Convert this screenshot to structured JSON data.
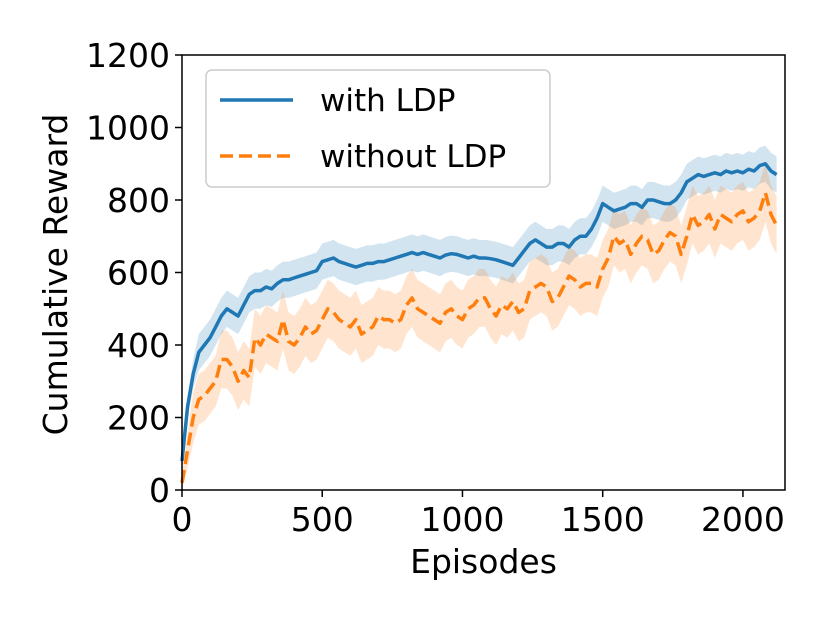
{
  "chart_data": {
    "type": "line",
    "title": "",
    "xlabel": "Episodes",
    "ylabel": "Cumulative Reward",
    "xlim": [
      0,
      2150
    ],
    "ylim": [
      0,
      1200
    ],
    "xticks": [
      0,
      500,
      1000,
      1500,
      2000
    ],
    "yticks": [
      0,
      200,
      400,
      600,
      800,
      1000,
      1200
    ],
    "grid": false,
    "legend_position": "top-left",
    "x": [
      0,
      20,
      40,
      60,
      80,
      100,
      120,
      140,
      160,
      180,
      200,
      220,
      240,
      260,
      280,
      300,
      320,
      340,
      360,
      380,
      400,
      420,
      440,
      460,
      480,
      500,
      520,
      540,
      560,
      580,
      600,
      620,
      640,
      660,
      680,
      700,
      720,
      740,
      760,
      780,
      800,
      820,
      840,
      860,
      880,
      900,
      920,
      940,
      960,
      980,
      1000,
      1020,
      1040,
      1060,
      1080,
      1100,
      1120,
      1140,
      1160,
      1180,
      1200,
      1220,
      1240,
      1260,
      1280,
      1300,
      1320,
      1340,
      1360,
      1380,
      1400,
      1420,
      1440,
      1460,
      1480,
      1500,
      1520,
      1540,
      1560,
      1580,
      1600,
      1620,
      1640,
      1660,
      1680,
      1700,
      1720,
      1740,
      1760,
      1780,
      1800,
      1820,
      1840,
      1860,
      1880,
      1900,
      1920,
      1940,
      1960,
      1980,
      2000,
      2020,
      2040,
      2060,
      2080,
      2100,
      2120
    ],
    "series": [
      {
        "name": "with LDP",
        "color": "#1f77b4",
        "style": "solid",
        "values": [
          80,
          230,
          320,
          380,
          400,
          420,
          450,
          480,
          500,
          490,
          480,
          510,
          540,
          550,
          550,
          560,
          555,
          570,
          580,
          580,
          585,
          590,
          595,
          600,
          605,
          630,
          635,
          640,
          630,
          625,
          620,
          615,
          620,
          625,
          625,
          630,
          630,
          635,
          640,
          645,
          650,
          655,
          650,
          655,
          650,
          645,
          640,
          648,
          652,
          650,
          645,
          640,
          645,
          640,
          640,
          638,
          635,
          630,
          625,
          620,
          640,
          660,
          680,
          690,
          680,
          670,
          670,
          680,
          680,
          670,
          690,
          700,
          700,
          720,
          750,
          790,
          780,
          770,
          775,
          780,
          790,
          790,
          780,
          800,
          800,
          795,
          790,
          790,
          800,
          820,
          850,
          860,
          870,
          865,
          870,
          875,
          870,
          880,
          875,
          880,
          875,
          885,
          880,
          895,
          900,
          880,
          870
        ]
      },
      {
        "name": "without LDP",
        "color": "#ff7f0e",
        "style": "dashed",
        "values": [
          20,
          110,
          200,
          250,
          260,
          280,
          300,
          360,
          360,
          340,
          300,
          330,
          310,
          420,
          400,
          430,
          420,
          410,
          470,
          410,
          400,
          420,
          450,
          430,
          440,
          470,
          500,
          490,
          470,
          460,
          450,
          470,
          430,
          440,
          450,
          480,
          470,
          470,
          460,
          470,
          510,
          530,
          500,
          490,
          480,
          470,
          460,
          490,
          500,
          480,
          470,
          500,
          510,
          530,
          530,
          500,
          480,
          510,
          500,
          520,
          490,
          500,
          550,
          560,
          570,
          560,
          520,
          530,
          560,
          590,
          580,
          560,
          570,
          570,
          560,
          610,
          640,
          700,
          680,
          690,
          650,
          680,
          700,
          690,
          650,
          660,
          690,
          710,
          700,
          650,
          700,
          760,
          730,
          740,
          760,
          720,
          760,
          750,
          740,
          760,
          770,
          740,
          750,
          770,
          820,
          760,
          730
        ]
      }
    ],
    "confidence_band": {
      "with LDP": {
        "lower": [
          50,
          200,
          280,
          330,
          350,
          370,
          400,
          430,
          450,
          440,
          430,
          460,
          490,
          500,
          500,
          510,
          505,
          520,
          530,
          530,
          535,
          540,
          545,
          550,
          555,
          580,
          585,
          590,
          580,
          575,
          570,
          565,
          570,
          575,
          575,
          580,
          580,
          585,
          590,
          595,
          600,
          605,
          600,
          605,
          600,
          595,
          590,
          598,
          602,
          600,
          595,
          590,
          595,
          590,
          590,
          588,
          585,
          580,
          575,
          570,
          590,
          610,
          630,
          640,
          630,
          620,
          620,
          630,
          630,
          620,
          640,
          650,
          650,
          670,
          700,
          740,
          730,
          720,
          725,
          730,
          740,
          740,
          730,
          750,
          750,
          745,
          740,
          740,
          750,
          770,
          800,
          810,
          820,
          815,
          820,
          825,
          820,
          830,
          825,
          830,
          825,
          835,
          830,
          845,
          850,
          830,
          820
        ],
        "upper": [
          110,
          260,
          360,
          430,
          450,
          470,
          500,
          530,
          550,
          540,
          530,
          560,
          590,
          600,
          600,
          610,
          605,
          620,
          630,
          630,
          635,
          640,
          645,
          650,
          655,
          680,
          685,
          690,
          680,
          675,
          670,
          665,
          670,
          675,
          675,
          680,
          680,
          685,
          690,
          695,
          700,
          705,
          700,
          705,
          700,
          695,
          690,
          698,
          702,
          700,
          695,
          690,
          695,
          690,
          690,
          688,
          685,
          680,
          675,
          670,
          690,
          710,
          730,
          740,
          730,
          720,
          720,
          730,
          730,
          720,
          740,
          750,
          750,
          770,
          800,
          840,
          830,
          820,
          825,
          830,
          840,
          840,
          830,
          850,
          850,
          845,
          840,
          840,
          850,
          870,
          900,
          910,
          920,
          915,
          920,
          925,
          920,
          930,
          925,
          930,
          925,
          935,
          930,
          945,
          950,
          930,
          920
        ]
      },
      "without LDP": {
        "lower": [
          0,
          60,
          130,
          180,
          190,
          210,
          230,
          280,
          280,
          260,
          220,
          250,
          230,
          340,
          320,
          350,
          340,
          330,
          390,
          330,
          320,
          340,
          370,
          350,
          360,
          390,
          420,
          410,
          390,
          380,
          370,
          390,
          350,
          360,
          370,
          400,
          390,
          390,
          380,
          390,
          430,
          450,
          420,
          410,
          400,
          390,
          380,
          410,
          420,
          400,
          390,
          420,
          430,
          450,
          450,
          420,
          400,
          430,
          420,
          440,
          410,
          420,
          470,
          480,
          490,
          480,
          440,
          450,
          480,
          510,
          500,
          480,
          490,
          490,
          480,
          530,
          560,
          620,
          600,
          610,
          570,
          600,
          620,
          610,
          570,
          580,
          610,
          630,
          620,
          570,
          620,
          680,
          650,
          660,
          680,
          640,
          680,
          670,
          660,
          680,
          690,
          660,
          670,
          690,
          740,
          680,
          650
        ],
        "upper": [
          40,
          160,
          270,
          320,
          330,
          350,
          370,
          440,
          440,
          420,
          380,
          410,
          390,
          500,
          480,
          510,
          500,
          490,
          550,
          490,
          480,
          500,
          530,
          510,
          520,
          550,
          580,
          570,
          550,
          540,
          530,
          550,
          510,
          520,
          530,
          560,
          550,
          550,
          540,
          550,
          590,
          610,
          580,
          570,
          560,
          550,
          540,
          570,
          580,
          560,
          550,
          580,
          590,
          610,
          610,
          580,
          560,
          590,
          580,
          600,
          570,
          580,
          630,
          640,
          650,
          640,
          600,
          610,
          640,
          670,
          660,
          640,
          650,
          650,
          640,
          690,
          720,
          780,
          760,
          770,
          730,
          760,
          780,
          770,
          730,
          740,
          770,
          790,
          780,
          730,
          780,
          840,
          810,
          820,
          840,
          800,
          840,
          830,
          820,
          840,
          850,
          820,
          830,
          850,
          900,
          840,
          810
        ]
      }
    }
  }
}
